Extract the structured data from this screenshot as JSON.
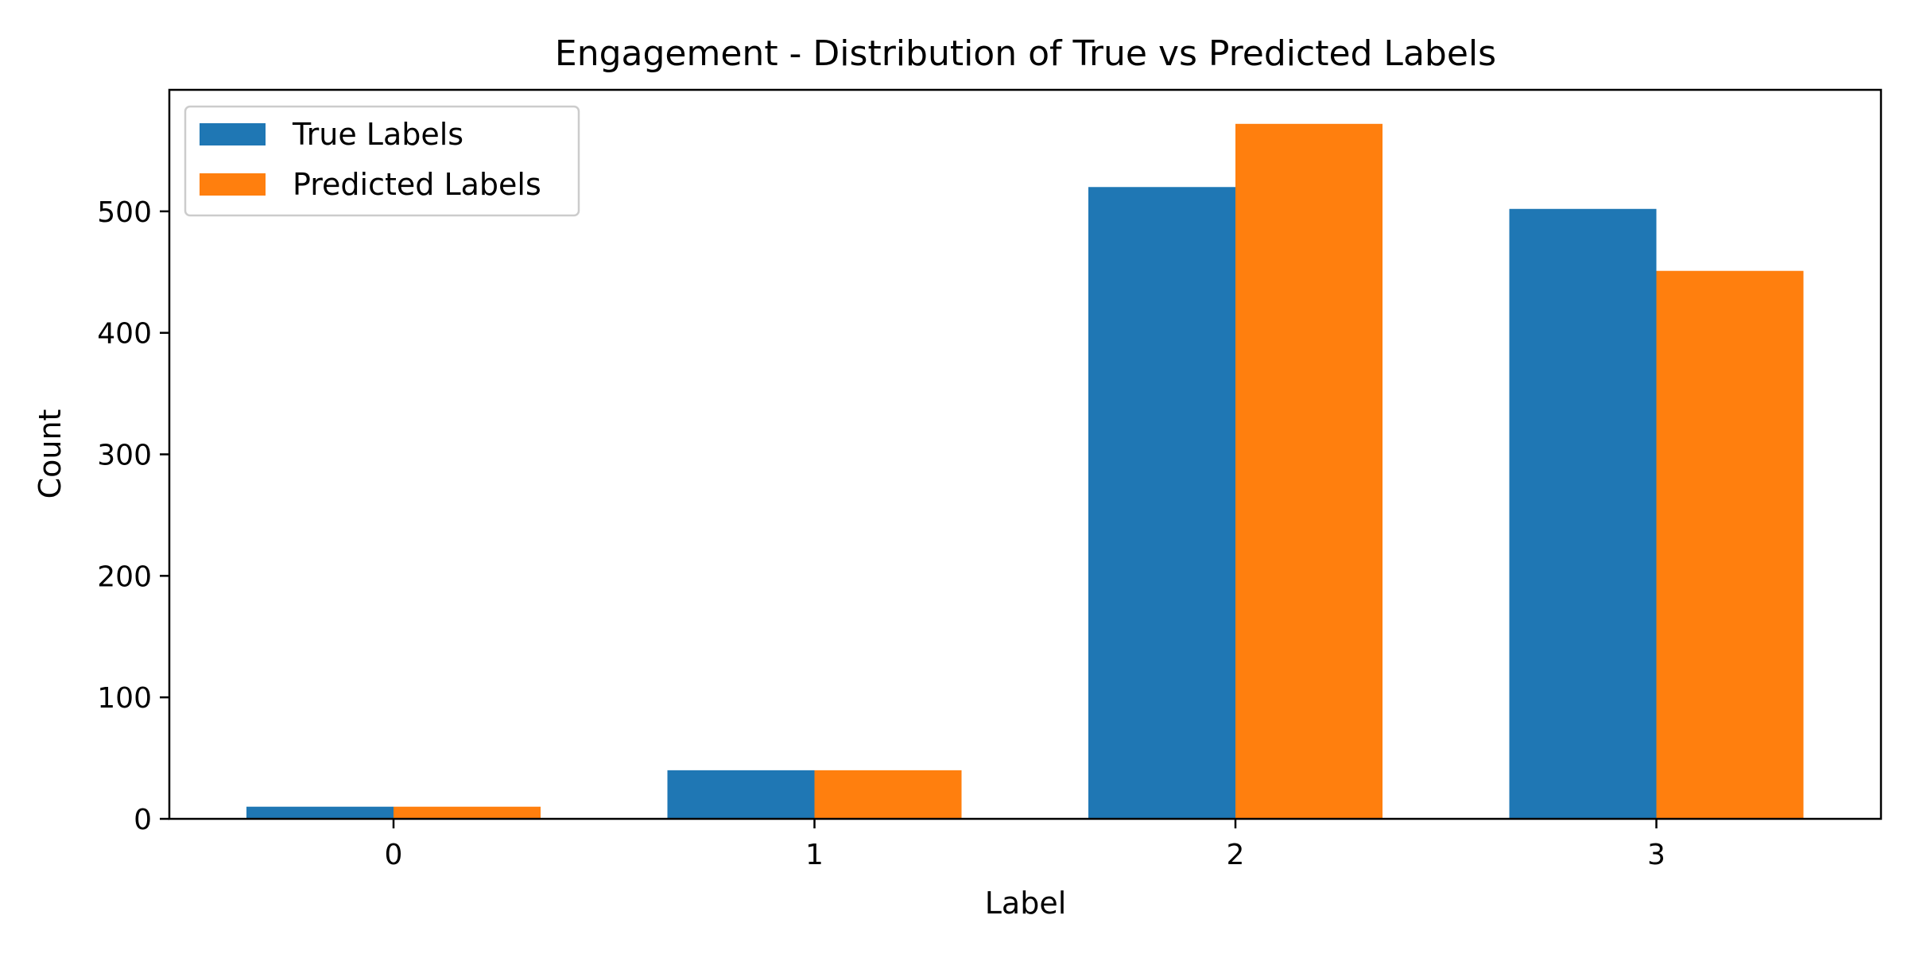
{
  "chart_data": {
    "type": "bar",
    "title": "Engagement - Distribution of True vs Predicted Labels",
    "xlabel": "Label",
    "ylabel": "Count",
    "categories": [
      "0",
      "1",
      "2",
      "3"
    ],
    "series": [
      {
        "name": "True Labels",
        "color": "#1f77b4",
        "values": [
          10,
          40,
          520,
          502
        ]
      },
      {
        "name": "Predicted Labels",
        "color": "#ff7f0e",
        "values": [
          10,
          40,
          572,
          451
        ]
      }
    ],
    "ylim": [
      0,
      600
    ],
    "yticks": [
      0,
      100,
      200,
      300,
      400,
      500
    ],
    "grid": false,
    "legend_position": "top-left"
  }
}
